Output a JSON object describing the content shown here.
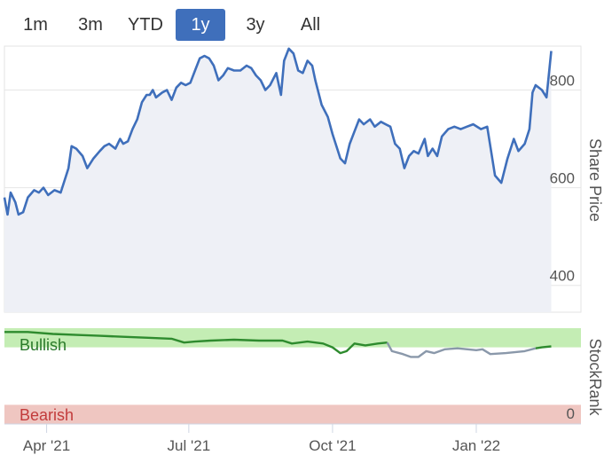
{
  "range_buttons": [
    "1m",
    "3m",
    "YTD",
    "1y",
    "3y",
    "All"
  ],
  "active_range": "1y",
  "colors": {
    "price_line": "#3f6fbb",
    "price_fill": "#eef0f6",
    "bullish_band": "#c4edb4",
    "bearish_band": "#efc6c1",
    "bullish_text": "#2a7a2a",
    "bearish_text": "#c23b3b",
    "rank_bullish_line": "#2e8b2e",
    "rank_neutral_line": "#8a98aa"
  },
  "chart_data": [
    {
      "type": "line",
      "name": "price",
      "ylabel": "Share Price",
      "ylim": [
        345,
        890
      ],
      "yticks": [
        400,
        600,
        800
      ],
      "ytick_labels": [
        "400",
        "600",
        "800"
      ],
      "xlim": [
        "2021-03-05",
        "2022-03-09"
      ],
      "xticks": [
        "2021-04-01",
        "2021-07-01",
        "2021-10-01",
        "2022-01-01"
      ],
      "xtick_labels": [
        "Apr '21",
        "Jul '21",
        "Oct '21",
        "Jan '22"
      ],
      "grid": true,
      "series": [
        {
          "points": [
            [
              "2021-03-05",
              580
            ],
            [
              "2021-03-07",
              545
            ],
            [
              "2021-03-09",
              590
            ],
            [
              "2021-03-12",
              570
            ],
            [
              "2021-03-14",
              545
            ],
            [
              "2021-03-17",
              550
            ],
            [
              "2021-03-20",
              580
            ],
            [
              "2021-03-24",
              595
            ],
            [
              "2021-03-27",
              590
            ],
            [
              "2021-03-30",
              600
            ],
            [
              "2021-04-02",
              585
            ],
            [
              "2021-04-06",
              595
            ],
            [
              "2021-04-10",
              590
            ],
            [
              "2021-04-13",
              620
            ],
            [
              "2021-04-15",
              640
            ],
            [
              "2021-04-17",
              685
            ],
            [
              "2021-04-20",
              680
            ],
            [
              "2021-04-24",
              665
            ],
            [
              "2021-04-27",
              640
            ],
            [
              "2021-05-01",
              660
            ],
            [
              "2021-05-05",
              675
            ],
            [
              "2021-05-08",
              685
            ],
            [
              "2021-05-11",
              690
            ],
            [
              "2021-05-15",
              680
            ],
            [
              "2021-05-18",
              700
            ],
            [
              "2021-05-20",
              690
            ],
            [
              "2021-05-23",
              695
            ],
            [
              "2021-05-26",
              720
            ],
            [
              "2021-05-29",
              740
            ],
            [
              "2021-06-01",
              775
            ],
            [
              "2021-06-04",
              790
            ],
            [
              "2021-06-06",
              790
            ],
            [
              "2021-06-08",
              800
            ],
            [
              "2021-06-10",
              785
            ],
            [
              "2021-06-14",
              795
            ],
            [
              "2021-06-17",
              800
            ],
            [
              "2021-06-20",
              780
            ],
            [
              "2021-06-23",
              805
            ],
            [
              "2021-06-26",
              815
            ],
            [
              "2021-06-29",
              810
            ],
            [
              "2021-07-02",
              815
            ],
            [
              "2021-07-05",
              840
            ],
            [
              "2021-07-08",
              865
            ],
            [
              "2021-07-11",
              870
            ],
            [
              "2021-07-14",
              865
            ],
            [
              "2021-07-17",
              850
            ],
            [
              "2021-07-20",
              820
            ],
            [
              "2021-07-23",
              830
            ],
            [
              "2021-07-26",
              845
            ],
            [
              "2021-07-30",
              840
            ],
            [
              "2021-08-03",
              840
            ],
            [
              "2021-08-07",
              850
            ],
            [
              "2021-08-10",
              845
            ],
            [
              "2021-08-13",
              830
            ],
            [
              "2021-08-16",
              820
            ],
            [
              "2021-08-19",
              800
            ],
            [
              "2021-08-22",
              810
            ],
            [
              "2021-08-26",
              835
            ],
            [
              "2021-08-29",
              790
            ],
            [
              "2021-08-31",
              860
            ],
            [
              "2021-09-03",
              885
            ],
            [
              "2021-09-06",
              875
            ],
            [
              "2021-09-09",
              840
            ],
            [
              "2021-09-12",
              835
            ],
            [
              "2021-09-15",
              860
            ],
            [
              "2021-09-18",
              850
            ],
            [
              "2021-09-20",
              820
            ],
            [
              "2021-09-24",
              770
            ],
            [
              "2021-09-28",
              745
            ],
            [
              "2021-10-01",
              710
            ],
            [
              "2021-10-04",
              680
            ],
            [
              "2021-10-06",
              660
            ],
            [
              "2021-10-09",
              650
            ],
            [
              "2021-10-12",
              690
            ],
            [
              "2021-10-15",
              715
            ],
            [
              "2021-10-18",
              740
            ],
            [
              "2021-10-21",
              730
            ],
            [
              "2021-10-25",
              740
            ],
            [
              "2021-10-28",
              725
            ],
            [
              "2021-11-01",
              735
            ],
            [
              "2021-11-04",
              730
            ],
            [
              "2021-11-07",
              725
            ],
            [
              "2021-11-10",
              690
            ],
            [
              "2021-11-13",
              680
            ],
            [
              "2021-11-16",
              640
            ],
            [
              "2021-11-19",
              665
            ],
            [
              "2021-11-22",
              675
            ],
            [
              "2021-11-25",
              670
            ],
            [
              "2021-11-29",
              700
            ],
            [
              "2021-12-01",
              665
            ],
            [
              "2021-12-04",
              680
            ],
            [
              "2021-12-07",
              665
            ],
            [
              "2021-12-10",
              705
            ],
            [
              "2021-12-14",
              720
            ],
            [
              "2021-12-18",
              725
            ],
            [
              "2021-12-22",
              720
            ],
            [
              "2021-12-26",
              725
            ],
            [
              "2021-12-30",
              730
            ],
            [
              "2022-01-04",
              720
            ],
            [
              "2022-01-08",
              725
            ],
            [
              "2022-01-13",
              625
            ],
            [
              "2022-01-17",
              610
            ],
            [
              "2022-01-21",
              660
            ],
            [
              "2022-01-25",
              700
            ],
            [
              "2022-01-28",
              675
            ],
            [
              "2022-02-01",
              690
            ],
            [
              "2022-02-04",
              720
            ],
            [
              "2022-02-06",
              795
            ],
            [
              "2022-02-08",
              810
            ],
            [
              "2022-02-12",
              800
            ],
            [
              "2022-02-15",
              785
            ],
            [
              "2022-02-18",
              880
            ]
          ]
        }
      ]
    },
    {
      "type": "line",
      "name": "stockrank",
      "ylabel": "StockRank",
      "ylim": [
        0,
        100
      ],
      "ytick_labels": [
        "0"
      ],
      "bands": [
        {
          "label": "Bullish",
          "from": 80,
          "to": 100
        },
        {
          "label": "Bearish",
          "from": 0,
          "to": 20
        }
      ],
      "series": [
        {
          "points": [
            [
              "2021-03-05",
              96
            ],
            [
              "2021-03-20",
              96
            ],
            [
              "2021-04-05",
              94
            ],
            [
              "2021-04-20",
              93
            ],
            [
              "2021-05-05",
              92
            ],
            [
              "2021-05-20",
              91
            ],
            [
              "2021-06-05",
              90
            ],
            [
              "2021-06-20",
              89
            ],
            [
              "2021-06-28",
              85
            ],
            [
              "2021-07-05",
              86
            ],
            [
              "2021-07-15",
              87
            ],
            [
              "2021-07-30",
              88
            ],
            [
              "2021-08-15",
              87
            ],
            [
              "2021-08-30",
              87
            ],
            [
              "2021-09-05",
              84
            ],
            [
              "2021-09-15",
              86
            ],
            [
              "2021-09-25",
              84
            ],
            [
              "2021-10-01",
              80
            ],
            [
              "2021-10-06",
              74
            ],
            [
              "2021-10-10",
              76
            ],
            [
              "2021-10-15",
              84
            ],
            [
              "2021-10-22",
              82
            ],
            [
              "2021-10-30",
              84
            ],
            [
              "2021-11-05",
              85
            ]
          ]
        },
        {
          "points": [
            [
              "2021-11-05",
              85
            ],
            [
              "2021-11-08",
              76
            ],
            [
              "2021-11-15",
              73
            ],
            [
              "2021-11-20",
              70
            ],
            [
              "2021-11-25",
              70
            ],
            [
              "2021-11-30",
              76
            ],
            [
              "2021-12-05",
              74
            ],
            [
              "2021-12-12",
              78
            ],
            [
              "2021-12-20",
              79
            ],
            [
              "2022-01-01",
              77
            ],
            [
              "2022-01-05",
              78
            ],
            [
              "2022-01-10",
              73
            ],
            [
              "2022-01-20",
              74
            ],
            [
              "2022-02-01",
              76
            ],
            [
              "2022-02-08",
              79
            ]
          ]
        },
        {
          "points": [
            [
              "2022-02-08",
              79
            ],
            [
              "2022-02-12",
              80
            ],
            [
              "2022-02-18",
              81
            ]
          ]
        }
      ]
    }
  ]
}
